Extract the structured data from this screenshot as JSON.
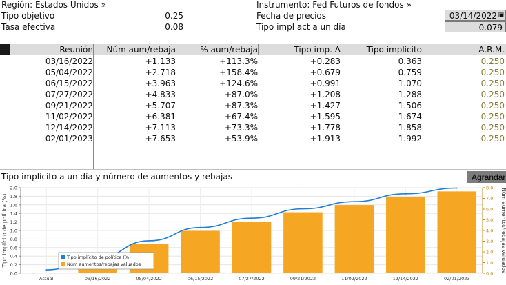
{
  "header": {
    "region_label": "Región: Estados Unidos »",
    "instrument_label": "Instrumento: Fed Futuros de fondos »",
    "target_rate_label": "Tipo objetivo",
    "target_rate_value": "0.25",
    "effective_rate_label": "Tasa efectiva",
    "effective_rate_value": "0.08",
    "price_date_label": "Fecha de precios",
    "price_date_value": "03/14/2022",
    "implied_overnight_label": "Tipo impl act a un día",
    "implied_overnight_value": "0.079"
  },
  "table": {
    "columns": [
      "Reunión",
      "Núm aum/rebaja",
      "% aum/rebaja",
      "Tipo imp. Δ",
      "Tipo implícito",
      "A.R.M."
    ],
    "rows": [
      {
        "meeting": "03/16/2022",
        "hikes": "+1.133",
        "pct": "+113.3%",
        "delta": "+0.283",
        "implied": "0.363",
        "arm": "0.250"
      },
      {
        "meeting": "05/04/2022",
        "hikes": "+2.718",
        "pct": "+158.4%",
        "delta": "+0.679",
        "implied": "0.759",
        "arm": "0.250"
      },
      {
        "meeting": "06/15/2022",
        "hikes": "+3.963",
        "pct": "+124.6%",
        "delta": "+0.991",
        "implied": "1.070",
        "arm": "0.250"
      },
      {
        "meeting": "07/27/2022",
        "hikes": "+4.833",
        "pct": "+87.0%",
        "delta": "+1.208",
        "implied": "1.288",
        "arm": "0.250"
      },
      {
        "meeting": "09/21/2022",
        "hikes": "+5.707",
        "pct": "+87.3%",
        "delta": "+1.427",
        "implied": "1.506",
        "arm": "0.250"
      },
      {
        "meeting": "11/02/2022",
        "hikes": "+6.381",
        "pct": "+67.4%",
        "delta": "+1.595",
        "implied": "1.674",
        "arm": "0.250"
      },
      {
        "meeting": "12/14/2022",
        "hikes": "+7.113",
        "pct": "+73.3%",
        "delta": "+1.778",
        "implied": "1.858",
        "arm": "0.250"
      },
      {
        "meeting": "02/01/2023",
        "hikes": "+7.653",
        "pct": "+53.9%",
        "delta": "+1.913",
        "implied": "1.992",
        "arm": "0.250"
      }
    ]
  },
  "chart_section": {
    "title": "Tipo implícito a un día y número de aumentos y rebajas",
    "zoom_label": "Agrandar"
  },
  "chart_data": {
    "type": "bar",
    "categories": [
      "Actual",
      "03/16/2022",
      "05/04/2022",
      "06/15/2022",
      "07/27/2022",
      "09/21/2022",
      "11/02/2022",
      "12/14/2022",
      "02/01/2023"
    ],
    "series": [
      {
        "name": "Tipo implícito de política (%)",
        "type": "line",
        "axis": "left",
        "values": [
          0.079,
          0.363,
          0.759,
          1.07,
          1.288,
          1.506,
          1.674,
          1.858,
          1.992
        ]
      },
      {
        "name": "Núm aumentos/rebajas valuados",
        "type": "bar",
        "axis": "right",
        "values": [
          0,
          1.133,
          2.718,
          3.963,
          4.833,
          5.707,
          6.381,
          7.113,
          7.653
        ]
      }
    ],
    "ylabel_left": "Tipo implícito de política (%)",
    "ylabel_right": "Núm aumentos/rebajas valuados",
    "ylim_left": [
      0,
      2.0
    ],
    "yticks_left": [
      "0.0",
      "0.2",
      "0.4",
      "0.6",
      "0.8",
      "1.0",
      "1.2",
      "1.4",
      "1.6",
      "1.8",
      "2.0"
    ],
    "ylim_right": [
      0,
      8.0
    ],
    "yticks_right": [
      "0.0",
      "1.0",
      "2.0",
      "3.0",
      "4.0",
      "5.0",
      "6.0",
      "7.0",
      "8.0"
    ],
    "legend_position": "bottom-left",
    "grid": true,
    "colors": {
      "line": "#1f7fd4",
      "bar": "#f5a623",
      "right_axis": "#c8891e"
    }
  }
}
